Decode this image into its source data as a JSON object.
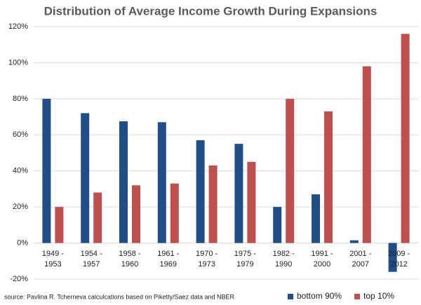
{
  "chart_data": {
    "type": "bar",
    "title": "Distribution of Average Income Growth During Expansions",
    "source": "source: Pavlina R. Tcherneva calculcations based on Piketty/Saez data and NBER",
    "categories": [
      "1949 - 1953",
      "1954 - 1957",
      "1958 - 1960",
      "1961 - 1969",
      "1970 - 1973",
      "1975 - 1979",
      "1982 - 1990",
      "1991 - 2000",
      "2001 - 2007",
      "2009 - 2012"
    ],
    "series": [
      {
        "name": "bottom 90%",
        "color": "#1f4e89",
        "values": [
          80,
          72,
          67.5,
          67,
          57,
          55,
          20,
          27,
          1.5,
          -16
        ]
      },
      {
        "name": "top 10%",
        "color": "#c0504d",
        "values": [
          20,
          28,
          32,
          33,
          43,
          45,
          80,
          73,
          98,
          116
        ]
      }
    ],
    "ylim": [
      -20,
      120
    ],
    "yticks": [
      {
        "value": -20,
        "label": "-20%"
      },
      {
        "value": 0,
        "label": "0%"
      },
      {
        "value": 20,
        "label": "20%"
      },
      {
        "value": 40,
        "label": "40%"
      },
      {
        "value": 60,
        "label": "60%"
      },
      {
        "value": 80,
        "label": "80%"
      },
      {
        "value": 100,
        "label": "100%"
      },
      {
        "value": 120,
        "label": "120%"
      }
    ],
    "grid": true,
    "legend": "bottom-right"
  }
}
